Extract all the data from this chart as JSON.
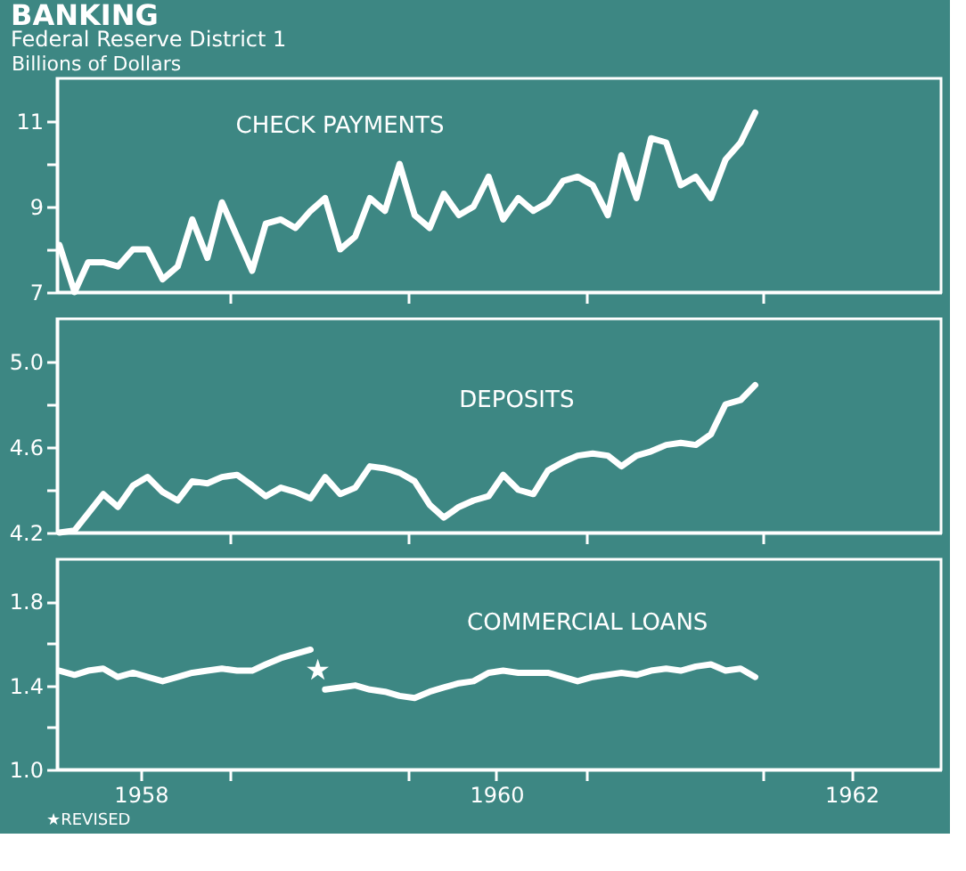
{
  "chart_data": [
    {
      "type": "line",
      "title": "BANKING",
      "subtitle": "Federal Reserve District 1",
      "ylabel": "Billions of Dollars",
      "x": [
        "1958-01-15",
        "1958-02-15",
        "1958-03-15",
        "1958-04-15",
        "1958-05-15",
        "1958-06-15",
        "1958-07-15",
        "1958-08-15",
        "1958-09-15",
        "1958-10-15",
        "1958-11-15",
        "1958-12-15",
        "1959-01-15",
        "1959-02-15",
        "1959-03-15",
        "1959-04-15",
        "1959-05-15",
        "1959-06-15",
        "1959-07-15",
        "1959-08-15",
        "1959-09-15",
        "1959-10-15",
        "1959-11-15",
        "1959-12-15",
        "1960-01-15",
        "1960-02-15",
        "1960-03-15",
        "1960-04-15",
        "1960-05-15",
        "1960-06-15",
        "1960-07-15",
        "1960-08-15",
        "1960-09-15",
        "1960-10-15",
        "1960-11-15",
        "1960-12-15",
        "1961-01-15",
        "1961-02-15",
        "1961-03-15",
        "1961-04-15",
        "1961-05-15",
        "1961-06-15",
        "1961-07-15",
        "1961-08-15",
        "1961-09-15",
        "1961-10-15",
        "1961-11-15",
        "1961-12-15"
      ],
      "series": [
        {
          "name": "CHECK PAYMENTS",
          "color": "#ffffff",
          "values": [
            8.1,
            7.0,
            7.7,
            7.7,
            7.6,
            8.0,
            8.0,
            7.3,
            7.6,
            8.7,
            7.8,
            9.1,
            8.3,
            7.5,
            8.6,
            8.7,
            8.5,
            8.9,
            9.2,
            8.0,
            8.3,
            9.2,
            8.9,
            10.0,
            8.8,
            8.5,
            9.3,
            8.8,
            9.0,
            9.7,
            8.7,
            9.2,
            8.9,
            9.1,
            9.6,
            9.7,
            9.5,
            8.8,
            10.2,
            9.2,
            10.6,
            10.5,
            9.5,
            9.7,
            9.2,
            10.1,
            10.5,
            11.2
          ]
        }
      ],
      "xlim": [
        "1958-01-10",
        "1963-01-01"
      ],
      "xticks": [
        {
          "value": "1959-01-01",
          "label": null
        },
        {
          "value": "1960-01-01",
          "label": null
        },
        {
          "value": "1961-01-01",
          "label": null
        },
        {
          "value": "1962-01-01",
          "label": null
        }
      ],
      "ylim": [
        7,
        12
      ],
      "yticks": [
        7,
        {
          "value": 8,
          "label": null
        },
        9,
        {
          "value": 10,
          "label": null
        },
        11
      ],
      "tick_labels": "y"
    },
    {
      "type": "line",
      "x": [
        "1958-01-15",
        "1958-02-15",
        "1958-03-15",
        "1958-04-15",
        "1958-05-15",
        "1958-06-15",
        "1958-07-15",
        "1958-08-15",
        "1958-09-15",
        "1958-10-15",
        "1958-11-15",
        "1958-12-15",
        "1959-01-15",
        "1959-02-15",
        "1959-03-15",
        "1959-04-15",
        "1959-05-15",
        "1959-06-15",
        "1959-07-15",
        "1959-08-15",
        "1959-09-15",
        "1959-10-15",
        "1959-11-15",
        "1959-12-15",
        "1960-01-15",
        "1960-02-15",
        "1960-03-15",
        "1960-04-15",
        "1960-05-15",
        "1960-06-15",
        "1960-07-15",
        "1960-08-15",
        "1960-09-15",
        "1960-10-15",
        "1960-11-15",
        "1960-12-15",
        "1961-01-15",
        "1961-02-15",
        "1961-03-15",
        "1961-04-15",
        "1961-05-15",
        "1961-06-15",
        "1961-07-15",
        "1961-08-15",
        "1961-09-15",
        "1961-10-15",
        "1961-11-15",
        "1961-12-15"
      ],
      "series": [
        {
          "name": "DEPOSITS",
          "color": "#ffffff",
          "values": [
            4.2,
            4.21,
            4.29,
            4.38,
            4.32,
            4.42,
            4.46,
            4.39,
            4.35,
            4.44,
            4.43,
            4.46,
            4.47,
            4.42,
            4.37,
            4.41,
            4.39,
            4.36,
            4.46,
            4.38,
            4.41,
            4.51,
            4.5,
            4.48,
            4.44,
            4.33,
            4.27,
            4.32,
            4.35,
            4.37,
            4.47,
            4.4,
            4.38,
            4.49,
            4.53,
            4.56,
            4.57,
            4.56,
            4.51,
            4.56,
            4.58,
            4.61,
            4.62,
            4.61,
            4.66,
            4.8,
            4.82,
            4.89
          ]
        }
      ],
      "xlim": [
        "1958-01-10",
        "1963-01-01"
      ],
      "xticks": [
        {
          "value": "1959-01-01",
          "label": null
        },
        {
          "value": "1960-01-01",
          "label": null
        },
        {
          "value": "1961-01-01",
          "label": null
        },
        {
          "value": "1962-01-01",
          "label": null
        }
      ],
      "ylim": [
        4.2,
        5.2
      ],
      "yticks": [
        4.2,
        {
          "value": 4.4,
          "label": null
        },
        4.6,
        {
          "value": 4.8,
          "label": null
        },
        {
          "value": 5.0,
          "label": "5.0"
        }
      ],
      "tick_labels": "y"
    },
    {
      "type": "line",
      "series": [
        {
          "color": "#ffffff",
          "x": [
            "1958-01-15",
            "1958-02-15",
            "1958-03-15",
            "1958-04-15",
            "1958-05-15",
            "1958-06-15",
            "1958-07-15",
            "1958-08-15",
            "1958-09-15",
            "1958-10-15",
            "1958-11-15",
            "1958-12-15",
            "1959-01-15",
            "1959-02-15",
            "1959-03-15",
            "1959-04-15",
            "1959-05-15",
            "1959-06-15"
          ],
          "values": [
            1.47,
            1.45,
            1.47,
            1.48,
            1.44,
            1.46,
            1.44,
            1.42,
            1.44,
            1.46,
            1.47,
            1.48,
            1.47,
            1.47,
            1.5,
            1.53,
            1.55,
            1.57
          ]
        },
        {
          "name": "COMMERCIAL LOANS",
          "color": "#ffffff",
          "x": [
            "1959-07-15",
            "1959-08-15",
            "1959-09-15",
            "1959-10-15",
            "1959-11-15",
            "1959-12-15",
            "1960-01-15",
            "1960-02-15",
            "1960-03-15",
            "1960-04-15",
            "1960-05-15",
            "1960-06-15",
            "1960-07-15",
            "1960-08-15",
            "1960-09-15",
            "1960-10-15",
            "1960-11-15",
            "1960-12-15",
            "1961-01-15",
            "1961-02-15",
            "1961-03-15",
            "1961-04-15",
            "1961-05-15",
            "1961-06-15",
            "1961-07-15",
            "1961-08-15",
            "1961-09-15",
            "1961-10-15",
            "1961-11-15",
            "1961-12-15"
          ],
          "values": [
            1.38,
            1.39,
            1.4,
            1.38,
            1.37,
            1.35,
            1.34,
            1.37,
            1.39,
            1.41,
            1.42,
            1.46,
            1.47,
            1.46,
            1.46,
            1.46,
            1.44,
            1.42,
            1.44,
            1.45,
            1.46,
            1.45,
            1.47,
            1.48,
            1.47,
            1.49,
            1.5,
            1.47,
            1.48,
            1.44
          ]
        }
      ],
      "annotations": [
        "★",
        "★REVISED"
      ],
      "xlim": [
        "1958-01-10",
        "1963-01-01"
      ],
      "xticks": [
        {
          "value": "1958-07-01",
          "label": "1958"
        },
        {
          "value": "1959-01-01",
          "label": null
        },
        {
          "value": "1960-01-01",
          "label": null
        },
        {
          "value": "1960-07-01",
          "label": "1960"
        },
        {
          "value": "1961-01-01",
          "label": null
        },
        {
          "value": "1962-01-01",
          "label": null
        },
        {
          "value": "1962-07-01",
          "label": "1962"
        }
      ],
      "ylim": [
        1.0,
        2.0
      ],
      "yticks": [
        {
          "value": 1.0,
          "label": "1.0"
        },
        {
          "value": 1.2,
          "label": null
        },
        {
          "value": 1.4,
          "label": "1.4"
        },
        {
          "value": 1.6,
          "label": null
        },
        {
          "value": 1.8,
          "label": "1.8"
        }
      ]
    }
  ]
}
